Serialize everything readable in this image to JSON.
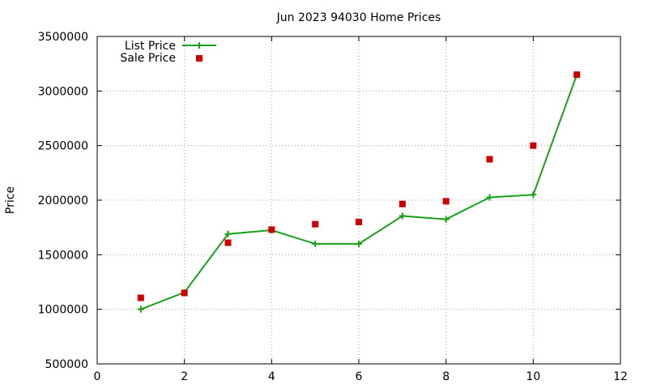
{
  "chart_data": {
    "type": "line",
    "title": "Jun 2023 94030 Home Prices",
    "xlabel": "",
    "ylabel": "Price",
    "xlim": [
      0,
      12
    ],
    "ylim": [
      500000,
      3500000
    ],
    "xticks": [
      0,
      2,
      4,
      6,
      8,
      10,
      12
    ],
    "yticks": [
      500000,
      1000000,
      1500000,
      2000000,
      2500000,
      3000000,
      3500000
    ],
    "grid": true,
    "legend_position": "top-left",
    "series": [
      {
        "name": "List Price",
        "style": "line-with-plus-markers",
        "color": "#1aa01a",
        "x": [
          1,
          2,
          3,
          4,
          5,
          6,
          7,
          8,
          9,
          10,
          11
        ],
        "y": [
          1000000,
          1155000,
          1690000,
          1725000,
          1600000,
          1600000,
          1855000,
          1825000,
          2025000,
          2050000,
          3150000
        ]
      },
      {
        "name": "Sale Price",
        "style": "square-points",
        "color": "#cc0000",
        "x": [
          1,
          2,
          3,
          4,
          5,
          6,
          7,
          8,
          9,
          10,
          11
        ],
        "y": [
          1105000,
          1150000,
          1610000,
          1730000,
          1780000,
          1800000,
          1965000,
          1990000,
          2375000,
          2500000,
          3150000
        ]
      }
    ]
  }
}
